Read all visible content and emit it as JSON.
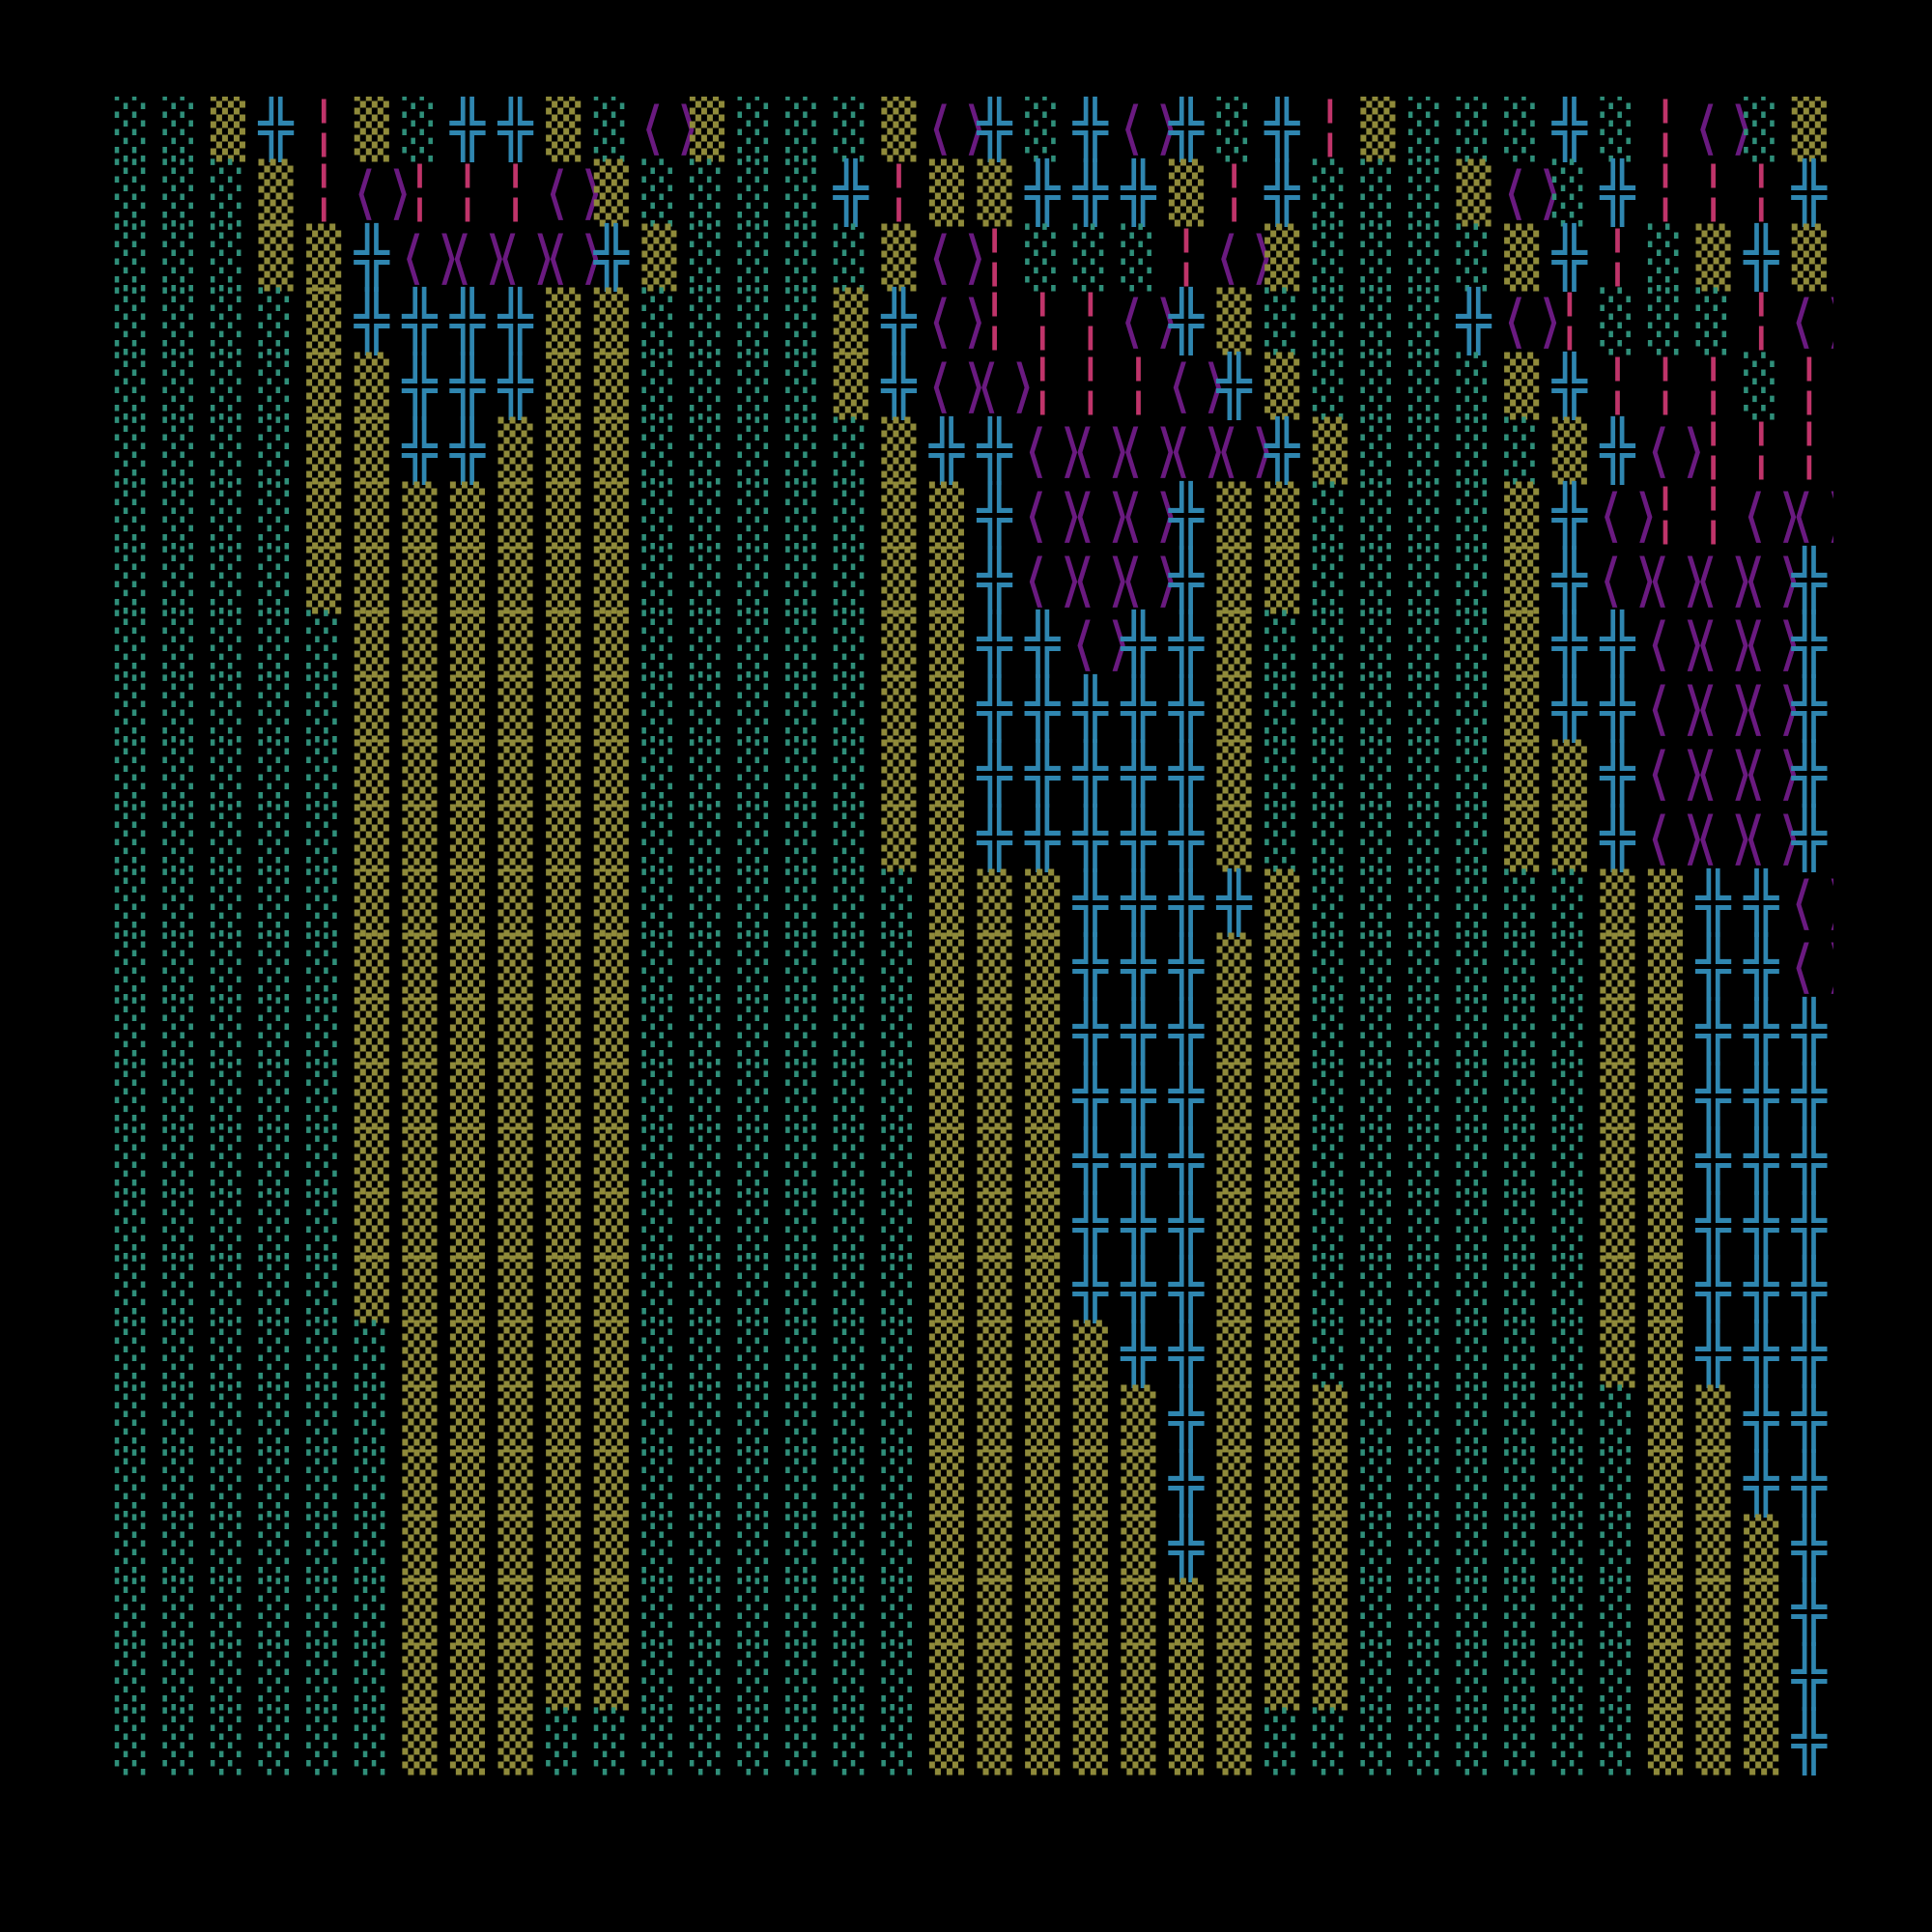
{
  "palette": {
    "background": "#000000",
    "g": "#2f8f7a",
    "y": "#8f8a3a",
    "b": "#2f86b0",
    "p": "#6a1a80",
    "r": "#c0346a"
  },
  "glyphs": {
    "g": "░",
    "y": "▒",
    "b": "╬",
    "p": "⟨⟩",
    "r": "╎"
  },
  "rows": [
    "ggybrygbbygpygggypbgbpbgbrygggbgrpgygbpr",
    "gggyrprrrpyggggbryybbbyrbgggypgbrrrbgb",
    "gggyybppppbyggggyprgggrpyggggybrgyby gp",
    "ggggybbbbyyggggybprrrpbyggggbprgggrp",
    "ggggyybbbyyggggybpprrrpbyggggybrrrgrpbg",
    "ggggyybbyyygggggybbpppppbyggggybprrrpbg",
    "ggggyyyyyyygggggyybpppbyyggggybprrppbg",
    "ggggyyyyyyygggggyybpppbyyggggybppppbg",
    "gggggyyyyyygggggyybbpbbygggggybbpppby",
    "gggggyyyyyygggggyybbbbbygggggybbpppby",
    "gggggyyyyyygggggyybbbbbygggggyybpppby",
    "gggggyyyyyygggggyybbbbbygggggyybpppby",
    "gggggyyyyyyggggggyyybbbbyggggggyybbpbby",
    "gggggyyyyyyggggggyyybbbyyggggggyybbpbby",
    "gggggyyyyyyggggggyyybbbyyggggggyybbbbby",
    "gggggyyyyyyggggggyyybbbyyggggggyybbbbby",
    "gggggyyyyyyggggggyyybbbyyggggggyybbbbby",
    "gggggyyyyyyggggggyyybbbyyggggggyybbbbby",
    "gggggyyyyyyggggggyyybbbyyggggggyybbbbby",
    "ggggggyyyyyggggggyyyybbyyggggggyybbbbby",
    "ggggggyyyyyggggggyyyyybyyyggggggyybbbbyy",
    "ggggggyyyyyggggggyyyyybyyyggggggyybbbbyy",
    "ggggggyyyyyggggggyyyyybyyyggggggyyybbbyy",
    "ggggggyyyyyggggggyyyyyyyyyggggggyyybbbyy",
    "ggggggyyyyyggggggyyyyyyyyyggggggyyybbbyy",
    "ggggggyyyggggggggyyyyyyyggggggggyyybbbyy"
  ]
}
